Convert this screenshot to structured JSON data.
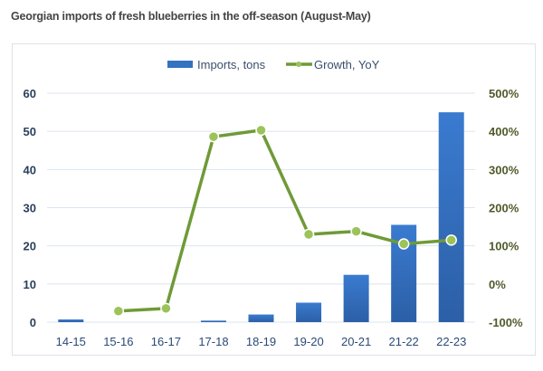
{
  "chart_data": {
    "type": "bar+line",
    "title": "Georgian imports of fresh blueberries in the off-season (August-May)",
    "categories": [
      "14-15",
      "15-16",
      "16-17",
      "17-18",
      "18-19",
      "19-20",
      "20-21",
      "21-22",
      "22-23"
    ],
    "series": [
      {
        "name": "Imports, tons",
        "type": "bar",
        "axis": "left",
        "values": [
          0.7,
          0,
          0,
          0.4,
          2,
          5.1,
          12.4,
          25.5,
          55
        ]
      },
      {
        "name": "Growth, YoY",
        "type": "line",
        "axis": "right",
        "values": [
          null,
          -71,
          -64,
          386,
          403,
          130,
          138,
          105,
          115
        ]
      }
    ],
    "left_axis": {
      "ylim": [
        0,
        60
      ],
      "ticks": [
        "0",
        "10",
        "20",
        "30",
        "40",
        "50",
        "60"
      ]
    },
    "right_axis": {
      "ylim": [
        -100,
        500
      ],
      "ticks": [
        "-100%",
        "0%",
        "100%",
        "200%",
        "300%",
        "400%",
        "500%"
      ]
    },
    "legend": "top",
    "grid": true,
    "colors": {
      "bar": "#3572c0",
      "line": "#6f9a37",
      "marker": "#9cc25a"
    }
  }
}
